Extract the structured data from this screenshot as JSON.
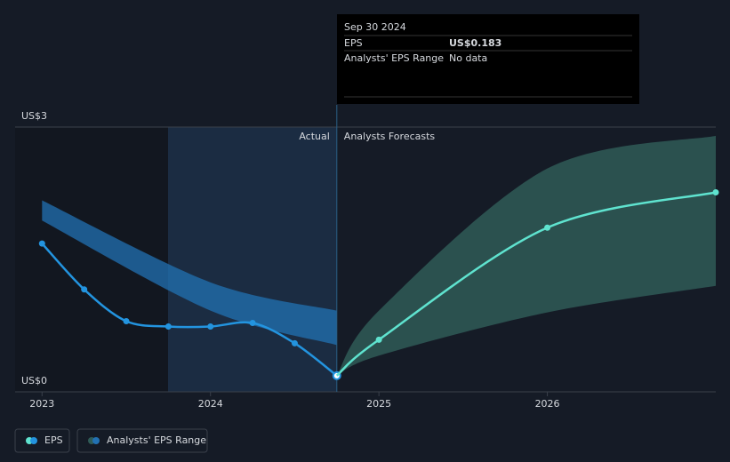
{
  "chart_data": {
    "type": "line",
    "xlim": [
      2022.84,
      2027.0
    ],
    "xticks": [
      2023,
      2024,
      2025,
      2026
    ],
    "ylim": [
      0,
      3
    ],
    "yticks": [
      {
        "value": 0,
        "label": "US$0"
      },
      {
        "value": 3,
        "label": "US$3"
      }
    ],
    "grid": true,
    "annotations": {
      "actual": "Actual",
      "forecast": "Analysts Forecasts"
    },
    "series": [
      {
        "name": "EPS",
        "actual": {
          "color": "#2394df",
          "x": [
            2023.0,
            2023.25,
            2023.5,
            2023.75,
            2024.0,
            2024.25,
            2024.5,
            2024.75
          ],
          "values": [
            1.68,
            1.16,
            0.8,
            0.74,
            0.74,
            0.78,
            0.55,
            0.183
          ]
        },
        "forecast": {
          "color": "#5fe3cf",
          "x": [
            2024.75,
            2025.0,
            2026.0,
            2027.0
          ],
          "values": [
            0.183,
            0.59,
            1.86,
            2.26
          ]
        }
      }
    ],
    "ranges": [
      {
        "name": "Analysts' EPS Range",
        "actual": {
          "color": "#2271b3",
          "x": [
            2023.0,
            2024.0,
            2024.75
          ],
          "high": [
            2.17,
            1.24,
            0.92
          ],
          "low": [
            1.94,
            0.92,
            0.53
          ]
        },
        "forecast": {
          "color": "#2f5b57",
          "x": [
            2024.75,
            2025.0,
            2026.0,
            2027.0
          ],
          "high": [
            0.183,
            0.92,
            2.53,
            2.9
          ],
          "low": [
            0.183,
            0.41,
            0.9,
            1.2
          ]
        }
      }
    ],
    "tooltip": {
      "date": "Sep 30 2024",
      "rows": [
        {
          "label": "EPS",
          "value_label": "US$0.183"
        },
        {
          "label": "Analysts' EPS Range",
          "value_label": "No data"
        }
      ]
    }
  }
}
